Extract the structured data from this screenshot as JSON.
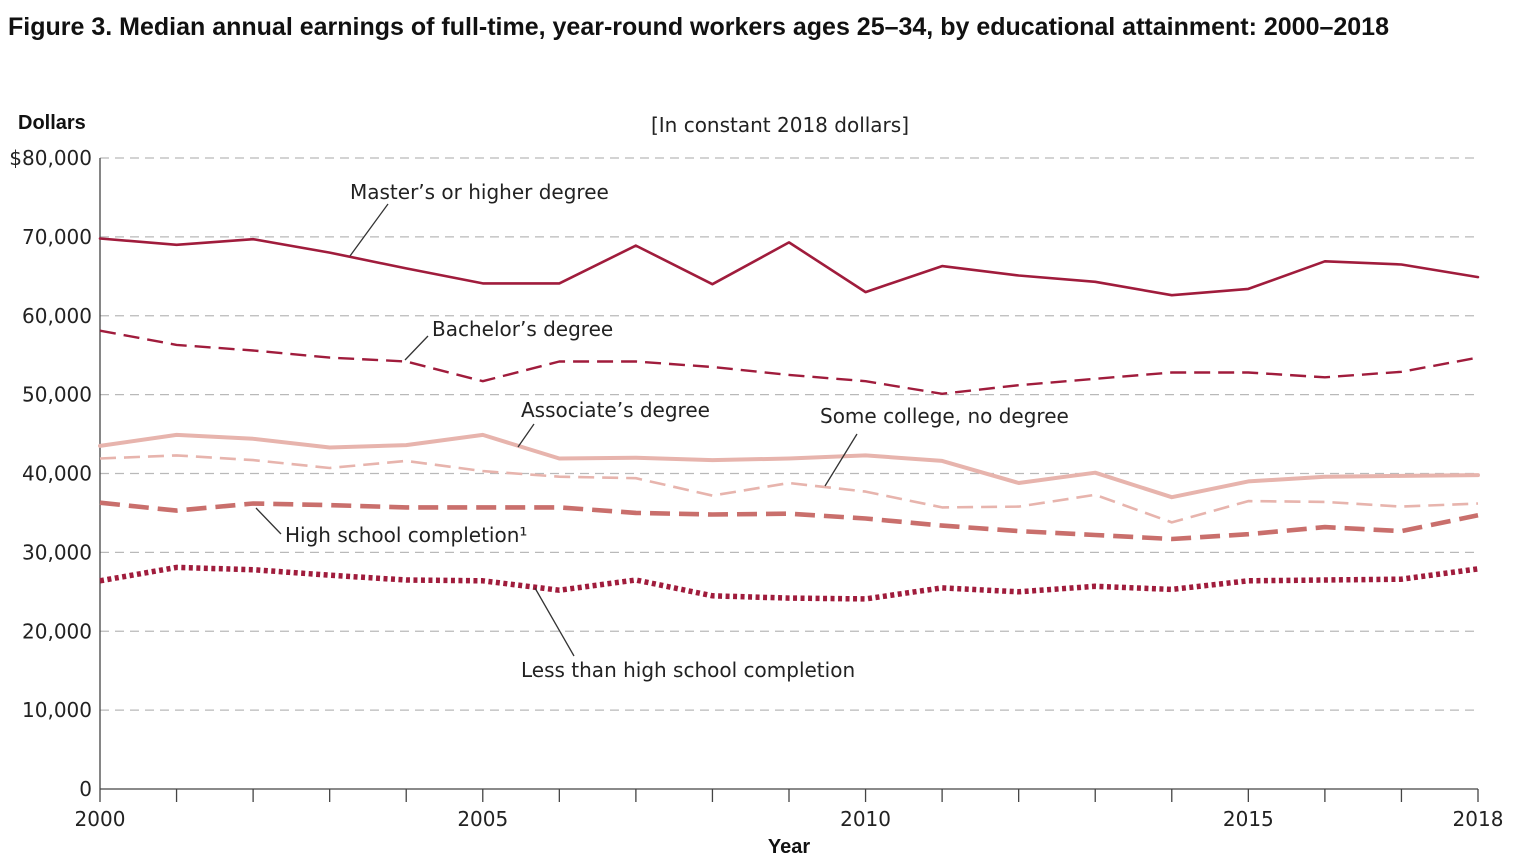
{
  "title": "Figure 3. Median annual earnings of full-time, year-round workers ages 25–34, by educational attainment: 2000–2018",
  "colors": {
    "masters": "#a01c3c",
    "bachelors": "#a01c3c",
    "associates": "#e7b4ad",
    "some_college": "#e7b4ad",
    "high_school": "#c96f6c",
    "less_than_hs": "#a01c3c"
  },
  "chart_data": {
    "type": "line",
    "title": "Figure 3. Median annual earnings of full-time, year-round workers ages 25–34, by educational attainment: 2000–2018",
    "subtitle": "[In constant 2018 dollars]",
    "xlabel": "Year",
    "ylabel": "Dollars",
    "xlim": [
      2000,
      2018
    ],
    "ylim": [
      0,
      80000
    ],
    "grid": true,
    "x": [
      2000,
      2001,
      2002,
      2003,
      2004,
      2005,
      2006,
      2007,
      2008,
      2009,
      2010,
      2011,
      2012,
      2013,
      2014,
      2015,
      2016,
      2017,
      2018
    ],
    "x_ticks": [
      2000,
      2001,
      2002,
      2003,
      2004,
      2005,
      2006,
      2007,
      2008,
      2009,
      2010,
      2011,
      2012,
      2013,
      2014,
      2015,
      2016,
      2017,
      2018
    ],
    "x_tick_labels": [
      {
        "value": 2000,
        "label": "2000"
      },
      {
        "value": 2005,
        "label": "2005"
      },
      {
        "value": 2010,
        "label": "2010"
      },
      {
        "value": 2015,
        "label": "2015"
      },
      {
        "value": 2018,
        "label": "2018"
      }
    ],
    "y_ticks": [
      {
        "value": 80000,
        "label": "$80,000"
      },
      {
        "value": 70000,
        "label": "70,000"
      },
      {
        "value": 60000,
        "label": "60,000"
      },
      {
        "value": 50000,
        "label": "50,000"
      },
      {
        "value": 40000,
        "label": "40,000"
      },
      {
        "value": 30000,
        "label": "30,000"
      },
      {
        "value": 20000,
        "label": "20,000"
      },
      {
        "value": 10000,
        "label": "10,000"
      },
      {
        "value": 0,
        "label": "0"
      }
    ],
    "series": [
      {
        "key": "masters",
        "name": "Master’s or higher degree",
        "style": "solid",
        "values": [
          69800,
          69000,
          69700,
          68000,
          66000,
          64100,
          64100,
          68900,
          64000,
          69300,
          63000,
          66300,
          65100,
          64300,
          62600,
          63400,
          66900,
          66500,
          64900
        ],
        "label_anchor": {
          "year": 2003.3,
          "value": 68000
        }
      },
      {
        "key": "bachelors",
        "name": "Bachelor’s degree",
        "style": "dashed",
        "values": [
          58100,
          56300,
          55600,
          54700,
          54200,
          51700,
          54200,
          54200,
          53500,
          52500,
          51700,
          50100,
          51200,
          52000,
          52800,
          52800,
          52200,
          52900,
          54700
        ],
        "label_anchor": {
          "year": 4.0,
          "value": 0
        }
      },
      {
        "key": "associates",
        "name": "Associate’s degree",
        "style": "solid",
        "values": [
          43500,
          44900,
          44400,
          43300,
          43600,
          44900,
          41900,
          42000,
          41700,
          41900,
          42300,
          41600,
          38800,
          40100,
          37000,
          39000,
          39600,
          39700,
          39800
        ],
        "label_anchor": {
          "year": 2005.5,
          "value": 43400
        }
      },
      {
        "key": "some_college",
        "name": "Some college, no degree",
        "style": "dashed",
        "values": [
          41900,
          42300,
          41700,
          40700,
          41600,
          40300,
          39600,
          39400,
          37200,
          38800,
          37700,
          35700,
          35800,
          37300,
          33800,
          36500,
          36400,
          35800,
          36200
        ],
        "label_anchor": {
          "year": 2009.5,
          "value": 38200
        }
      },
      {
        "key": "high_school",
        "name": "High school completion¹",
        "style": "dashed-thick",
        "values": [
          36300,
          35300,
          36200,
          36000,
          35700,
          35700,
          35700,
          35000,
          34800,
          34900,
          34300,
          33400,
          32700,
          32200,
          31700,
          32300,
          33200,
          32700,
          34700
        ],
        "label_anchor": {
          "year": 2002.0,
          "value": 36100
        }
      },
      {
        "key": "less_than_hs",
        "name": "Less than high school completion",
        "style": "dotted",
        "values": [
          26400,
          28100,
          27800,
          27100,
          26500,
          26400,
          25200,
          26500,
          24500,
          24200,
          24100,
          25500,
          25000,
          25700,
          25300,
          26400,
          26500,
          26600,
          27900
        ],
        "label_anchor": {
          "year": 2005.7,
          "value": 25300
        }
      }
    ]
  }
}
